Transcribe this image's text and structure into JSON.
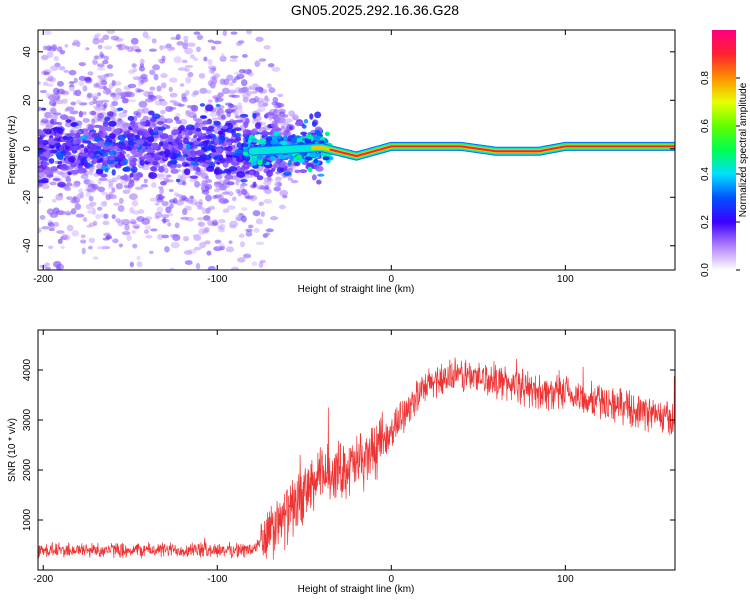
{
  "title": "GN05.2025.292.16.36.G28",
  "chart_data": [
    {
      "type": "heatmap",
      "xlabel": "Height of straight line (km)",
      "ylabel": "Frequency (Hz)",
      "xlim": [
        -203,
        163
      ],
      "ylim": [
        -50,
        49
      ],
      "xticks": [
        -200,
        -100,
        0,
        100
      ],
      "yticks": [
        -40,
        -20,
        0,
        20,
        40
      ],
      "ridge_frequency_hz": [
        {
          "x": -80,
          "y": -1
        },
        {
          "x": -40,
          "y": 0.5
        },
        {
          "x": -20,
          "y": -3
        },
        {
          "x": 0,
          "y": 1
        },
        {
          "x": 40,
          "y": 1
        },
        {
          "x": 60,
          "y": -1
        },
        {
          "x": 85,
          "y": -1
        },
        {
          "x": 100,
          "y": 1
        },
        {
          "x": 163,
          "y": 1
        }
      ],
      "colorbar": {
        "label": "Normalized spectral amplitude",
        "ticks": [
          "0.0",
          "0.2",
          "0.4",
          "0.6",
          "0.8"
        ],
        "range": [
          0,
          1
        ]
      }
    },
    {
      "type": "line",
      "xlabel": "Height of straight line (km)",
      "ylabel": "SNR (10 * v/v)",
      "xlim": [
        -203,
        163
      ],
      "ylim": [
        0,
        4800
      ],
      "xticks": [
        -200,
        -100,
        0,
        100
      ],
      "yticks": [
        1000,
        2000,
        3000,
        4000
      ],
      "series": [
        {
          "name": "SNR",
          "color": "#ee3333",
          "trend": [
            {
              "x": -203,
              "y": 400
            },
            {
              "x": -80,
              "y": 400
            },
            {
              "x": -70,
              "y": 700
            },
            {
              "x": -55,
              "y": 1300
            },
            {
              "x": -40,
              "y": 1900
            },
            {
              "x": -20,
              "y": 2100
            },
            {
              "x": -5,
              "y": 2500
            },
            {
              "x": 10,
              "y": 3300
            },
            {
              "x": 25,
              "y": 3800
            },
            {
              "x": 40,
              "y": 3900
            },
            {
              "x": 60,
              "y": 3800
            },
            {
              "x": 80,
              "y": 3600
            },
            {
              "x": 100,
              "y": 3500
            },
            {
              "x": 130,
              "y": 3300
            },
            {
              "x": 163,
              "y": 3000
            }
          ]
        }
      ]
    }
  ]
}
